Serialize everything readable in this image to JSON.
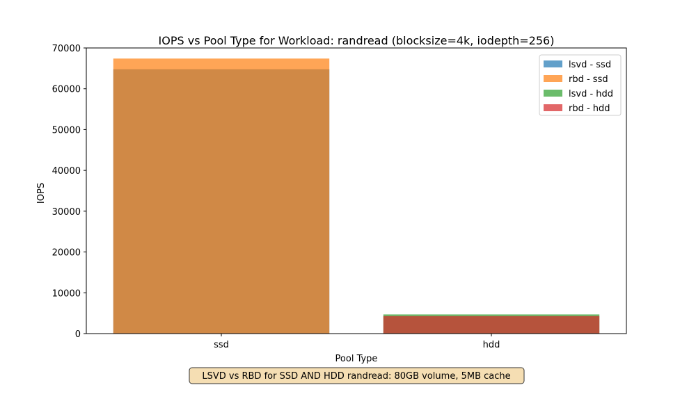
{
  "chart_data": {
    "type": "bar",
    "title": "IOPS vs Pool Type for Workload: randread (blocksize=4k, iodepth=256)",
    "xlabel": "Pool Type",
    "ylabel": "IOPS",
    "categories": [
      "ssd",
      "hdd"
    ],
    "ylim": [
      0,
      70000
    ],
    "yticks": [
      0,
      10000,
      20000,
      30000,
      40000,
      50000,
      60000,
      70000
    ],
    "grid": false,
    "legend_position": "top-right",
    "overlay": true,
    "series": [
      {
        "name": "lsvd - ssd",
        "category": "ssd",
        "value": 64800,
        "color": "#1f77b4",
        "alpha": 0.7
      },
      {
        "name": "rbd - ssd",
        "category": "ssd",
        "value": 67400,
        "color": "#ff7f0e",
        "alpha": 0.7
      },
      {
        "name": "lsvd - hdd",
        "category": "hdd",
        "value": 4700,
        "color": "#2ca02c",
        "alpha": 0.7
      },
      {
        "name": "rbd - hdd",
        "category": "hdd",
        "value": 4300,
        "color": "#d62728",
        "alpha": 0.7
      }
    ],
    "caption": "LSVD vs RBD for SSD AND HDD randread: 80GB volume, 5MB cache",
    "caption_box_color": "#f5deb3"
  }
}
